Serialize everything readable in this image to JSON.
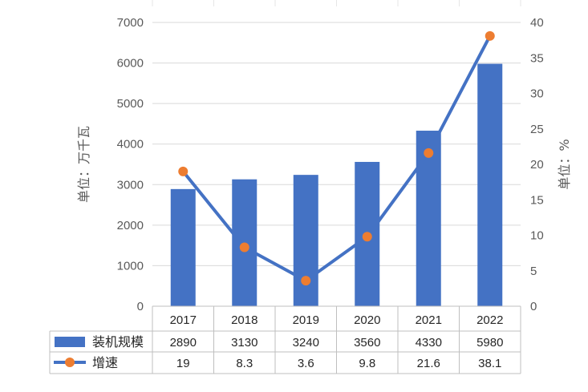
{
  "chart_data": {
    "type": "bar",
    "categories": [
      "2017",
      "2018",
      "2019",
      "2020",
      "2021",
      "2022"
    ],
    "series": [
      {
        "name": "装机规模",
        "chart_type": "bar",
        "axis": "left",
        "values": [
          2890,
          3130,
          3240,
          3560,
          4330,
          5980
        ],
        "labels": [
          "2890",
          "3130",
          "3240",
          "3560",
          "4330",
          "5980"
        ],
        "color": "#4472C4"
      },
      {
        "name": "增速",
        "chart_type": "line",
        "axis": "right",
        "values": [
          19,
          8.3,
          3.6,
          9.8,
          21.6,
          38.1
        ],
        "labels": [
          "19",
          "8.3",
          "3.6",
          "9.8",
          "21.6",
          "38.1"
        ],
        "color": "#4472C4",
        "marker_color": "#ED7D31"
      }
    ],
    "ylabel": "单位：万千瓦",
    "y2label": "单位：%",
    "ylim": [
      0,
      7000
    ],
    "y2lim": [
      0,
      40
    ],
    "yticks": [
      "0",
      "1000",
      "2000",
      "3000",
      "4000",
      "5000",
      "6000",
      "7000"
    ],
    "y2ticks": [
      "0",
      "5",
      "10",
      "15",
      "20",
      "25",
      "30",
      "35",
      "40"
    ],
    "grid": true,
    "legend": "data-table"
  }
}
